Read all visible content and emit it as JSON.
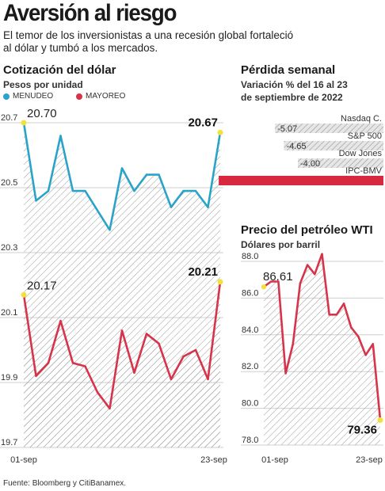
{
  "header": {
    "title": "Aversión al riesgo",
    "subtitle_line1": "El temor de los inversionistas a una recesión global fortaleció",
    "subtitle_line2": "al dólar y tumbó a los mercados."
  },
  "source": "Fuente: Bloomberg y CitiBanamex.",
  "colors": {
    "menudeo": "#2aa3c9",
    "mayoreo": "#d6344a",
    "bar_pattern": "#b8b8b8",
    "ipc_bar": "#d8283f",
    "marker": "#f2e13a"
  },
  "chart_data": [
    {
      "type": "line",
      "title": "Cotización del dólar",
      "subtitle": "Pesos por unidad",
      "ylim": [
        19.7,
        20.7
      ],
      "y_ticks": [
        "20.7",
        "20.5",
        "20.3",
        "20.1",
        "19.9",
        "19.7"
      ],
      "x_ticks": [
        "01-sep",
        "23-sep"
      ],
      "series": [
        {
          "name": "MENUDEO",
          "values": [
            20.7,
            20.46,
            20.49,
            20.66,
            20.49,
            20.49,
            20.43,
            20.37,
            20.56,
            20.49,
            20.54,
            20.54,
            20.44,
            20.49,
            20.49,
            20.44,
            20.67
          ],
          "start_label": "20.70",
          "end_label": "20.67"
        },
        {
          "name": "MAYOREO",
          "values": [
            20.17,
            19.92,
            19.96,
            20.09,
            19.96,
            19.95,
            19.87,
            19.82,
            20.06,
            19.93,
            20.05,
            20.02,
            19.91,
            19.98,
            20.0,
            19.91,
            20.21
          ],
          "start_label": "20.17",
          "end_label": "20.21"
        }
      ],
      "grid": true
    },
    {
      "type": "bar",
      "title": "Pérdida semanal",
      "subtitle_line1": "Variación % del 16 al 23",
      "subtitle_line2": "de septiembre de 2022",
      "categories": [
        "Nasdaq C.",
        "S&P 500",
        "Dow Jones",
        "IPC-BMV"
      ],
      "values": [
        -5.07,
        -4.65,
        -4.0,
        -7.7
      ],
      "value_labels": [
        "-5.07",
        "-4.65",
        "-4.00",
        ""
      ]
    },
    {
      "type": "line",
      "title": "Precio del petróleo WTI",
      "subtitle": "Dólares por barril",
      "ylim": [
        78.0,
        88.0
      ],
      "y_ticks": [
        "88.0",
        "86.0",
        "84.0",
        "82.0",
        "80.0",
        "78.0"
      ],
      "x_ticks": [
        "01-sep",
        "23-sep"
      ],
      "series": [
        {
          "values": [
            86.61,
            86.9,
            86.9,
            81.9,
            83.5,
            86.8,
            87.8,
            87.3,
            88.4,
            85.1,
            85.1,
            85.7,
            84.4,
            83.9,
            82.9,
            83.5,
            79.36
          ],
          "start_label": "86.61",
          "end_label": "79.36"
        }
      ],
      "grid": true
    }
  ]
}
